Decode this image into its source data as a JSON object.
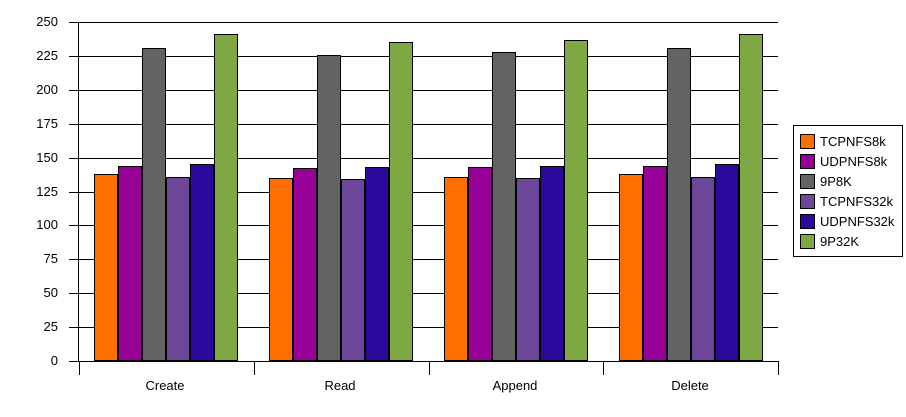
{
  "chart_data": {
    "type": "bar",
    "title": "",
    "categories": [
      "Create",
      "Read",
      "Append",
      "Delete"
    ],
    "series": [
      {
        "name": "TCPNFS8k",
        "color": "#FF6F00",
        "values": [
          138,
          135,
          136,
          138
        ]
      },
      {
        "name": "UDPNFS8k",
        "color": "#970096",
        "values": [
          144,
          142,
          143,
          144
        ]
      },
      {
        "name": "9P8K",
        "color": "#636363",
        "values": [
          231,
          226,
          228,
          231
        ]
      },
      {
        "name": "TCPNFS32k",
        "color": "#6B4699",
        "values": [
          136,
          134,
          135,
          136
        ]
      },
      {
        "name": "UDPNFS32k",
        "color": "#2D0A9E",
        "values": [
          145,
          143,
          144,
          145
        ]
      },
      {
        "name": "9P32K",
        "color": "#7FA845",
        "values": [
          241,
          235,
          237,
          241
        ]
      }
    ],
    "xlabel": "",
    "ylabel": "",
    "ylim": [
      0,
      250
    ],
    "ytick_interval": 25,
    "ytick_labels": [
      "0",
      "25",
      "50",
      "75",
      "100",
      "125",
      "150",
      "175",
      "200",
      "225",
      "250"
    ],
    "grid": true,
    "legend_position": "right",
    "axis_color": "#000000",
    "gridline_color": "#000000",
    "bar_outline_color": "#000000",
    "background_color": "#FFFFFF"
  }
}
